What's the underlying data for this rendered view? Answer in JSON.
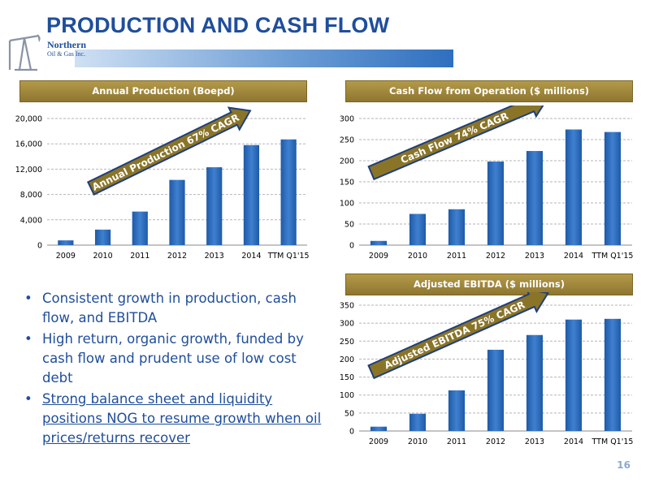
{
  "slide": {
    "title": "PRODUCTION AND CASH FLOW",
    "page_number": "16",
    "logo": {
      "line1": "Northern",
      "line2": "Oil & Gas Inc."
    }
  },
  "bullets": [
    "Consistent growth in production, cash flow, and EBITDA",
    "High return, organic growth, funded by cash flow and prudent use of low cost debt",
    "Strong balance sheet and liquidity positions NOG to resume growth when oil prices/returns recover"
  ],
  "colors": {
    "title": "#1f4e9c",
    "bar": "#2f6fbf",
    "header_gold": "#a08a3e",
    "arrow": "#8a7428"
  },
  "chart_data": [
    {
      "type": "bar",
      "title": "Annual Production (Boepd)",
      "annotation": "Annual Production 67% CAGR",
      "categories": [
        "2009",
        "2010",
        "2011",
        "2012",
        "2013",
        "2014",
        "TTM Q1'15"
      ],
      "values": [
        750,
        2450,
        5300,
        10300,
        12300,
        15800,
        16700
      ],
      "ylim": [
        0,
        20000
      ],
      "yticks": [
        "0",
        "4,000",
        "8,000",
        "12,000",
        "16,000",
        "20,000"
      ],
      "ytick_values": [
        0,
        4000,
        8000,
        12000,
        16000,
        20000
      ],
      "grid": true
    },
    {
      "type": "bar",
      "title": "Cash Flow from Operation ($ millions)",
      "annotation": "Cash Flow 74% CAGR",
      "categories": [
        "2009",
        "2010",
        "2011",
        "2012",
        "2013",
        "2014",
        "TTM Q1'15"
      ],
      "values": [
        10,
        74,
        85,
        198,
        223,
        274,
        268
      ],
      "ylim": [
        0,
        300
      ],
      "yticks": [
        "0",
        "50",
        "100",
        "150",
        "200",
        "250",
        "300"
      ],
      "ytick_values": [
        0,
        50,
        100,
        150,
        200,
        250,
        300
      ],
      "grid": true
    },
    {
      "type": "bar",
      "title": "Adjusted EBITDA ($ millions)",
      "annotation": "Adjusted EBITDA 75% CAGR",
      "categories": [
        "2009",
        "2010",
        "2011",
        "2012",
        "2013",
        "2014",
        "TTM Q1'15"
      ],
      "values": [
        12,
        48,
        113,
        226,
        267,
        310,
        312
      ],
      "ylim": [
        0,
        350
      ],
      "yticks": [
        "0",
        "50",
        "100",
        "150",
        "200",
        "250",
        "300",
        "350"
      ],
      "ytick_values": [
        0,
        50,
        100,
        150,
        200,
        250,
        300,
        350
      ],
      "grid": true
    }
  ]
}
